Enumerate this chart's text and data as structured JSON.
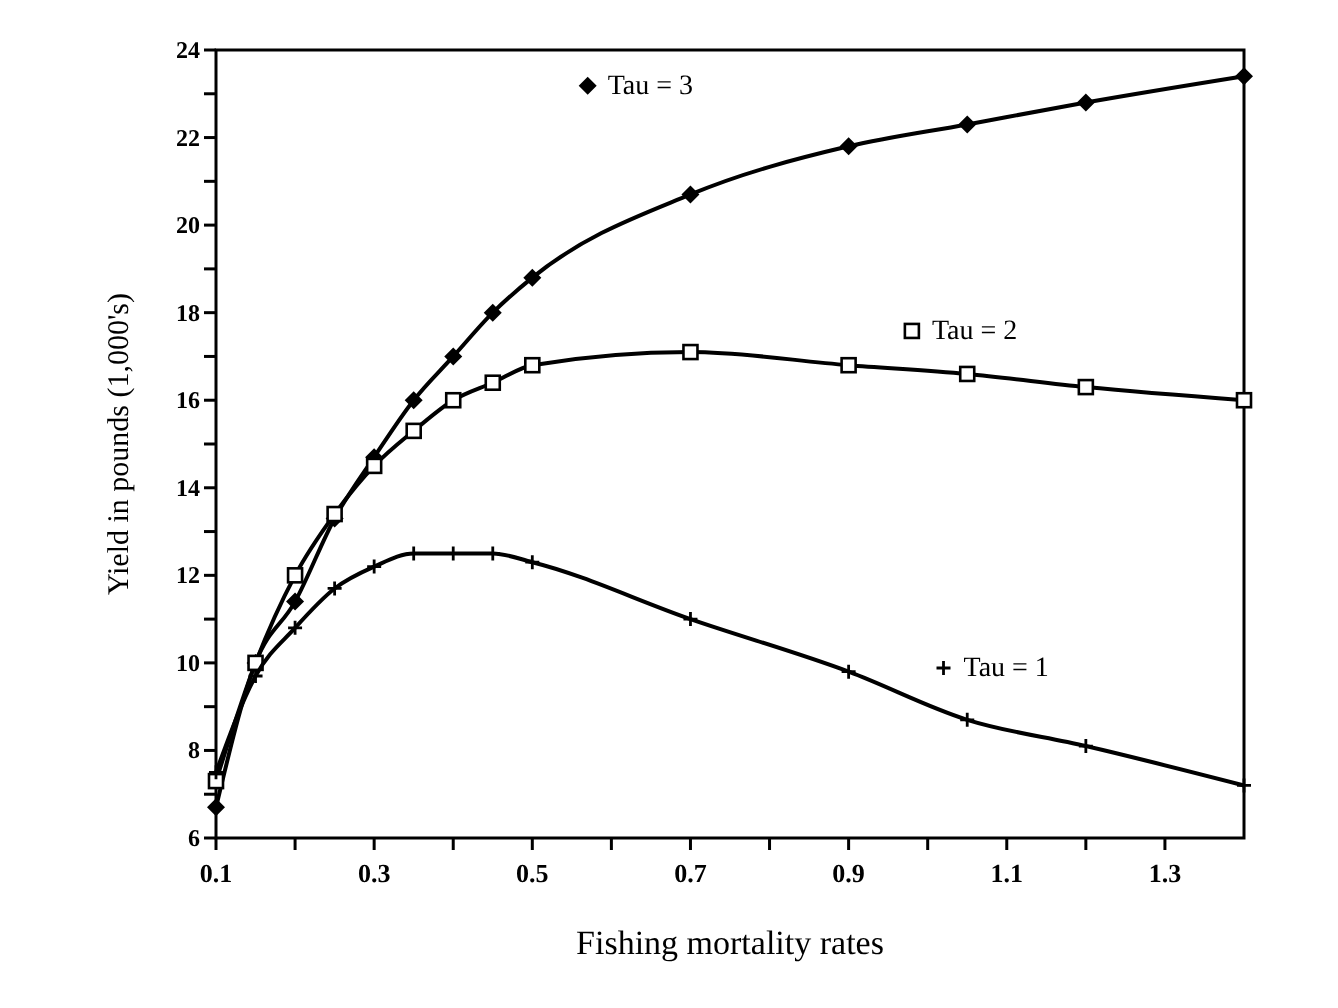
{
  "chart_data": {
    "type": "line",
    "xlabel": "Fishing mortality rates",
    "ylabel": "Yield in pounds (1,000's)",
    "xlim": [
      0.1,
      1.4
    ],
    "ylim": [
      6,
      24
    ],
    "xticks": [
      0.1,
      {
        "value": 0.2,
        "label": null
      },
      0.3,
      {
        "value": 0.4,
        "label": null
      },
      0.5,
      {
        "value": 0.6,
        "label": null
      },
      0.7,
      {
        "value": 0.8,
        "label": null
      },
      0.9,
      {
        "value": 1.0,
        "label": null
      },
      1.1,
      {
        "value": 1.2,
        "label": null
      },
      1.3
    ],
    "yticks": [
      6,
      {
        "value": 7,
        "label": null
      },
      8,
      {
        "value": 9,
        "label": null
      },
      10,
      {
        "value": 11,
        "label": null
      },
      12,
      {
        "value": 13,
        "label": null
      },
      14,
      {
        "value": 15,
        "label": null
      },
      16,
      {
        "value": 17,
        "label": null
      },
      18,
      {
        "value": 19,
        "label": null
      },
      20,
      {
        "value": 21,
        "label": null
      },
      22,
      {
        "value": 23,
        "label": null
      },
      24
    ],
    "grid": false,
    "legend": "right",
    "line_style": "solid",
    "x": [
      0.1,
      0.15,
      0.2,
      0.25,
      0.3,
      0.35,
      0.4,
      0.45,
      0.5,
      0.7,
      0.9,
      1.05,
      1.2,
      1.4
    ],
    "series": [
      {
        "name": "Tau = 3",
        "color": "#000000",
        "marker": "diamond",
        "values": [
          6.7,
          10.0,
          11.4,
          13.3,
          14.7,
          16.0,
          17.0,
          18.0,
          18.8,
          20.7,
          21.8,
          22.3,
          22.8,
          23.4
        ]
      },
      {
        "name": "Tau = 2",
        "color": "#000000",
        "marker": "square",
        "values": [
          7.3,
          10.0,
          12.0,
          13.4,
          14.5,
          15.3,
          16.0,
          16.4,
          16.8,
          17.1,
          16.8,
          16.6,
          16.3,
          16.0
        ]
      },
      {
        "name": "Tau = 1",
        "color": "#000000",
        "marker": "cross",
        "values": [
          7.5,
          9.7,
          10.8,
          11.7,
          12.2,
          12.5,
          12.5,
          12.5,
          12.3,
          11.0,
          9.8,
          8.7,
          8.1,
          7.2
        ]
      }
    ]
  }
}
